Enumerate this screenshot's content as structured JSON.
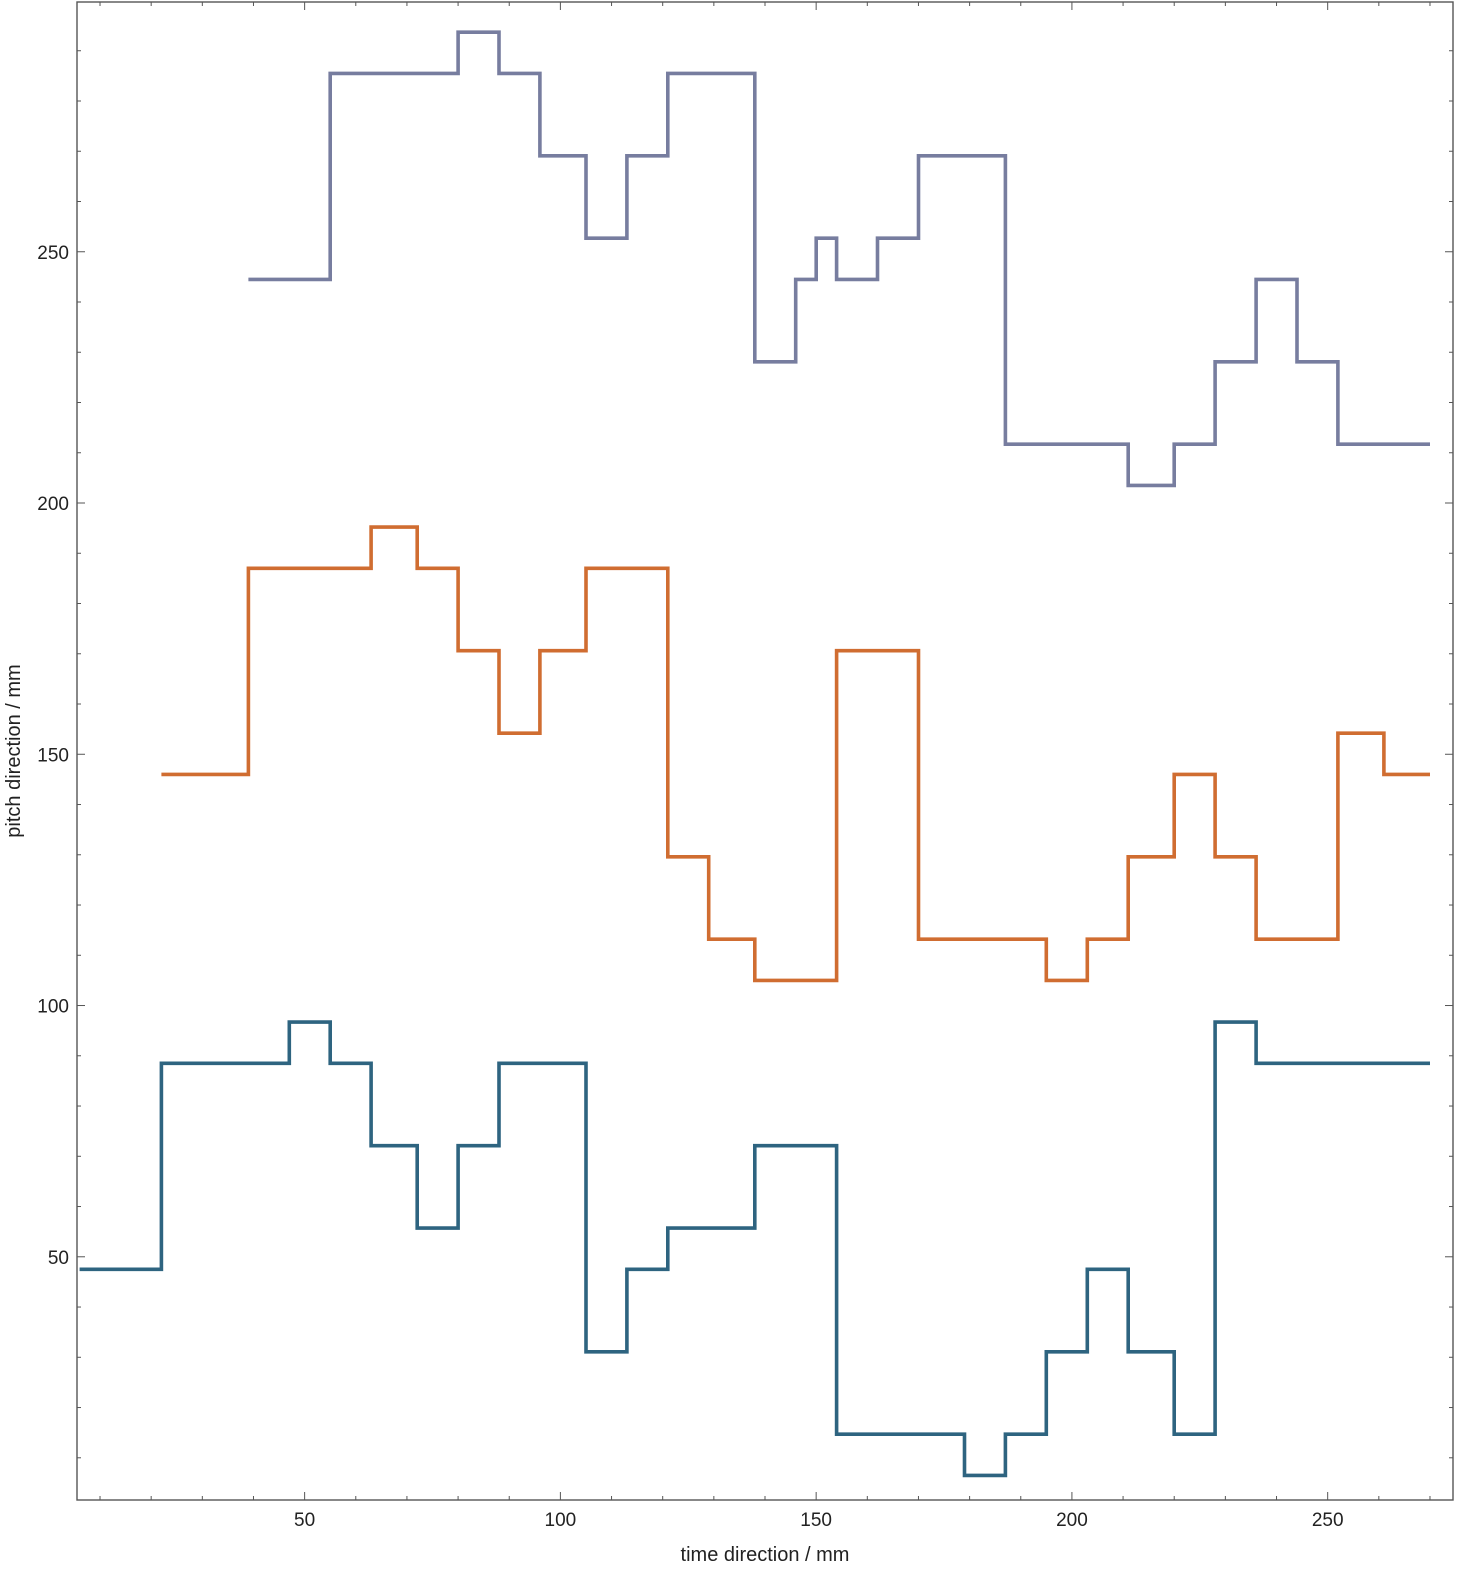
{
  "chart_data": {
    "type": "line",
    "step": true,
    "title": "",
    "xlabel": "time direction / mm",
    "ylabel": "pitch direction / mm",
    "xlim": [
      5.5,
      274.5
    ],
    "ylim": [
      1.6,
      299.7
    ],
    "xticks": [
      50,
      100,
      150,
      200,
      250
    ],
    "xtick_labels": [
      "50",
      "100",
      "150",
      "200",
      "250"
    ],
    "yticks": [
      50,
      100,
      150,
      200,
      250
    ],
    "ytick_labels": [
      "50",
      "100",
      "150",
      "200",
      "250"
    ],
    "grid": false,
    "legend": "none",
    "series": [
      {
        "color": "#2e6480",
        "x": [
          6,
          22,
          22,
          47,
          47,
          55,
          55,
          63,
          63,
          72,
          72,
          80,
          80,
          88,
          88,
          105,
          105,
          113,
          113,
          121,
          121,
          138,
          138,
          154,
          154,
          179,
          179,
          187,
          187,
          195,
          195,
          203,
          203,
          211,
          211,
          220,
          220,
          228,
          228,
          236,
          236,
          270
        ],
        "y": [
          47.5,
          47.5,
          88.5,
          88.5,
          96.7,
          96.7,
          88.5,
          88.5,
          72.1,
          72.1,
          55.7,
          55.7,
          72.1,
          72.1,
          88.5,
          88.5,
          31.1,
          31.1,
          47.5,
          47.5,
          55.7,
          55.7,
          72.1,
          72.1,
          14.7,
          14.7,
          6.5,
          6.5,
          14.7,
          14.7,
          31.1,
          31.1,
          47.5,
          47.5,
          31.1,
          31.1,
          14.7,
          14.7,
          96.7,
          96.7,
          88.5,
          88.5
        ]
      },
      {
        "color": "#d06d31",
        "x": [
          22,
          39,
          39,
          63,
          63,
          72,
          72,
          80,
          80,
          88,
          88,
          96,
          96,
          105,
          105,
          121,
          121,
          129,
          129,
          138,
          138,
          154,
          154,
          170,
          170,
          195,
          195,
          203,
          203,
          211,
          211,
          220,
          220,
          228,
          228,
          236,
          236,
          252,
          252,
          261,
          261,
          270
        ],
        "y": [
          146,
          146,
          187,
          187,
          195.2,
          195.2,
          187,
          187,
          170.6,
          170.6,
          154.2,
          154.2,
          170.6,
          170.6,
          187,
          187,
          129.6,
          129.6,
          113.2,
          113.2,
          105,
          105,
          170.6,
          170.6,
          113.2,
          113.2,
          105,
          105,
          113.2,
          113.2,
          129.6,
          129.6,
          146,
          146,
          129.6,
          129.6,
          113.2,
          113.2,
          154.2,
          154.2,
          146,
          146
        ]
      },
      {
        "color": "#777d9f",
        "x": [
          39,
          55,
          55,
          80,
          80,
          88,
          88,
          96,
          96,
          105,
          105,
          113,
          113,
          121,
          121,
          138,
          138,
          146,
          146,
          150,
          150,
          154,
          154,
          162,
          162,
          170,
          170,
          187,
          187,
          211,
          211,
          220,
          220,
          228,
          228,
          236,
          236,
          244,
          244,
          252,
          252,
          270
        ],
        "y": [
          244.5,
          244.5,
          285.5,
          285.5,
          293.7,
          293.7,
          285.5,
          285.5,
          269.1,
          269.1,
          252.7,
          252.7,
          269.1,
          269.1,
          285.5,
          285.5,
          228.1,
          228.1,
          244.5,
          244.5,
          252.7,
          252.7,
          244.5,
          244.5,
          252.7,
          252.7,
          269.1,
          269.1,
          211.7,
          211.7,
          203.5,
          203.5,
          211.7,
          211.7,
          228.1,
          228.1,
          244.5,
          244.5,
          228.1,
          228.1,
          211.7,
          211.7
        ]
      }
    ]
  }
}
